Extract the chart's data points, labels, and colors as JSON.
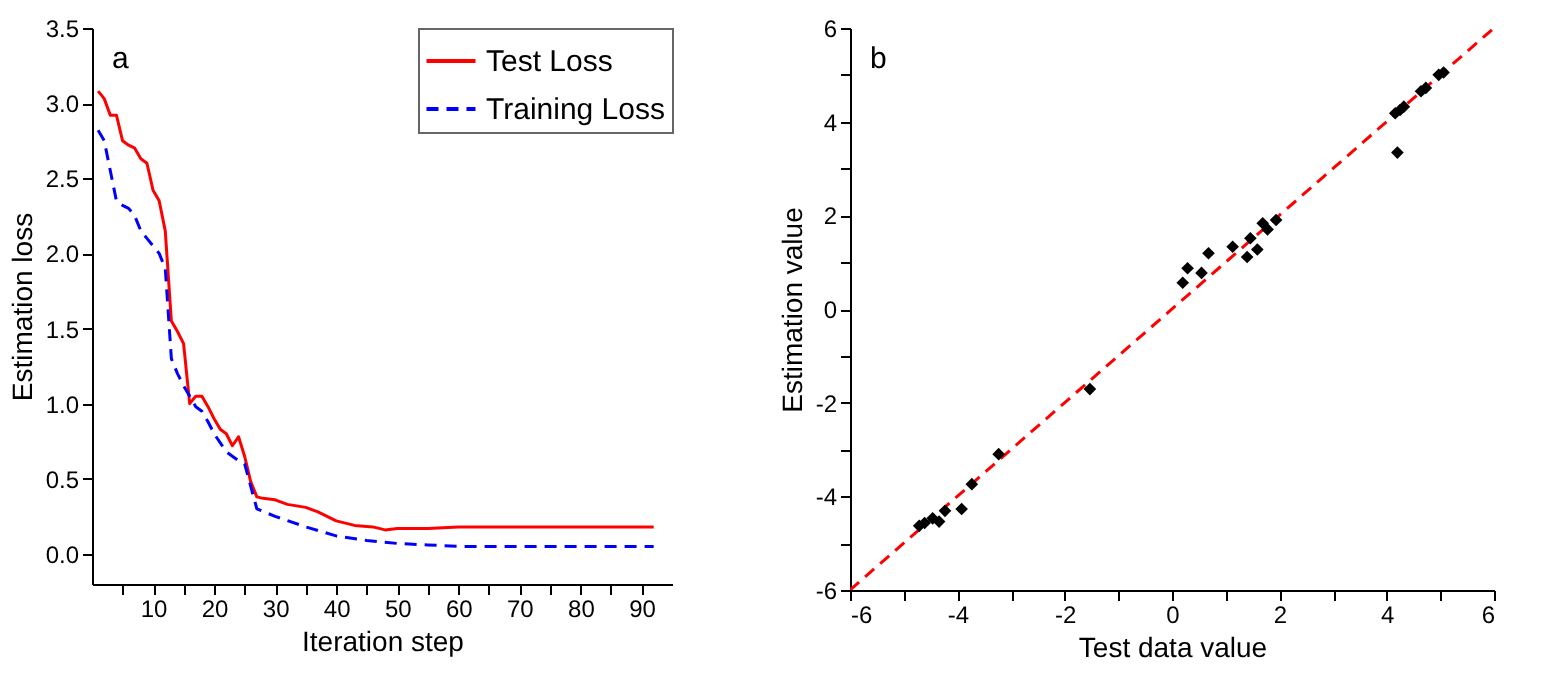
{
  "chart_data": [
    {
      "type": "line",
      "xlabel": "Iteration step",
      "ylabel": "Estimation loss",
      "annotations": [
        "a"
      ],
      "xlim": [
        0,
        95
      ],
      "ylim": [
        -0.2,
        3.5
      ],
      "xticks": [
        {
          "value": 5,
          "label": null
        },
        10,
        {
          "value": 15,
          "label": null
        },
        20,
        {
          "value": 25,
          "label": null
        },
        30,
        {
          "value": 35,
          "label": null
        },
        40,
        {
          "value": 45,
          "label": null
        },
        50,
        {
          "value": 55,
          "label": null
        },
        60,
        {
          "value": 65,
          "label": null
        },
        70,
        {
          "value": 75,
          "label": null
        },
        80,
        {
          "value": 85,
          "label": null
        },
        90
      ],
      "yticks": [
        {
          "value": 0,
          "label": "0.0"
        },
        {
          "value": 0.5,
          "label": "0.5"
        },
        {
          "value": 1,
          "label": "1.0"
        },
        {
          "value": 1.5,
          "label": "1.5"
        },
        {
          "value": 2,
          "label": "2.0"
        },
        {
          "value": 2.5,
          "label": "2.5"
        },
        {
          "value": 3,
          "label": "3.0"
        },
        {
          "value": 3.5,
          "label": "3.5"
        }
      ],
      "legend": "top right",
      "series": [
        {
          "name": "Test Loss",
          "color": "#ff0000",
          "line_style": "solid",
          "x": [
            1,
            2,
            3,
            4,
            5,
            6,
            7,
            8,
            9,
            10,
            11,
            12,
            13,
            14,
            15,
            16,
            17,
            18,
            19,
            20,
            21,
            22,
            23,
            24,
            25,
            26,
            27,
            28,
            30,
            32,
            35,
            37,
            40,
            43,
            46,
            48,
            50,
            55,
            60,
            70,
            80,
            92
          ],
          "values": [
            3.08,
            3.03,
            2.92,
            2.92,
            2.75,
            2.72,
            2.7,
            2.63,
            2.6,
            2.42,
            2.35,
            2.15,
            1.55,
            1.48,
            1.4,
            1.0,
            1.05,
            1.05,
            0.98,
            0.9,
            0.83,
            0.8,
            0.72,
            0.78,
            0.65,
            0.48,
            0.38,
            0.37,
            0.36,
            0.33,
            0.31,
            0.28,
            0.22,
            0.19,
            0.18,
            0.16,
            0.17,
            0.17,
            0.18,
            0.18,
            0.18,
            0.18
          ]
        },
        {
          "name": "Training Loss",
          "color": "#0000ff",
          "line_style": "dashed",
          "x": [
            1,
            2,
            3,
            4,
            5,
            6,
            7,
            8,
            9,
            10,
            11,
            12,
            13,
            14,
            15,
            16,
            17,
            18,
            19,
            20,
            22,
            24,
            25,
            26,
            27,
            30,
            35,
            40,
            45,
            50,
            55,
            60,
            70,
            92
          ],
          "values": [
            2.82,
            2.75,
            2.55,
            2.35,
            2.32,
            2.3,
            2.25,
            2.15,
            2.1,
            2.05,
            2.0,
            1.9,
            1.3,
            1.2,
            1.12,
            1.05,
            0.98,
            0.95,
            0.88,
            0.8,
            0.68,
            0.62,
            0.6,
            0.45,
            0.3,
            0.25,
            0.18,
            0.12,
            0.09,
            0.07,
            0.06,
            0.05,
            0.05,
            0.05
          ]
        }
      ]
    },
    {
      "type": "scatter",
      "xlabel": "Test data value",
      "ylabel": "Estimation value",
      "annotations": [
        "b"
      ],
      "xlim": [
        -6,
        6
      ],
      "ylim": [
        -6,
        6
      ],
      "xticks": [
        -6,
        {
          "value": -5,
          "label": null
        },
        -4,
        {
          "value": -3,
          "label": null
        },
        -2,
        {
          "value": -1,
          "label": null
        },
        0,
        {
          "value": 1,
          "label": null
        },
        2,
        {
          "value": 3,
          "label": null
        },
        4,
        {
          "value": 5,
          "label": null
        },
        6
      ],
      "yticks": [
        -6,
        {
          "value": -5,
          "label": null
        },
        -4,
        {
          "value": -3,
          "label": null
        },
        -2,
        {
          "value": -1,
          "label": null
        },
        0,
        {
          "value": 1,
          "label": null
        },
        2,
        {
          "value": 3,
          "label": null
        },
        4,
        {
          "value": 5,
          "label": null
        },
        6
      ],
      "series": [
        {
          "type": "line",
          "color": "#ff0000",
          "line_style": "dashed",
          "x": [
            -6,
            6
          ],
          "values": [
            -6,
            6
          ]
        },
        {
          "type": "scatter",
          "color": "#000000",
          "marker": "diamond",
          "x": [
            0.2,
            0.29,
            0.55,
            0.68,
            1.13,
            1.4,
            1.46,
            1.59,
            1.69,
            1.78,
            1.94,
            4.2,
            4.16,
            4.25,
            4.32,
            4.64,
            4.73,
            4.97,
            5.06,
            -1.53,
            -3.23,
            -3.73,
            -3.92,
            -4.23,
            -4.34,
            -4.46,
            -4.61,
            -4.71
          ],
          "values": [
            0.56,
            0.87,
            0.77,
            1.19,
            1.33,
            1.11,
            1.51,
            1.27,
            1.83,
            1.7,
            1.9,
            3.34,
            4.18,
            4.25,
            4.32,
            4.65,
            4.72,
            5.0,
            5.05,
            -1.71,
            -3.1,
            -3.74,
            -4.27,
            -4.31,
            -4.54,
            -4.47,
            -4.57,
            -4.63
          ]
        }
      ]
    }
  ]
}
